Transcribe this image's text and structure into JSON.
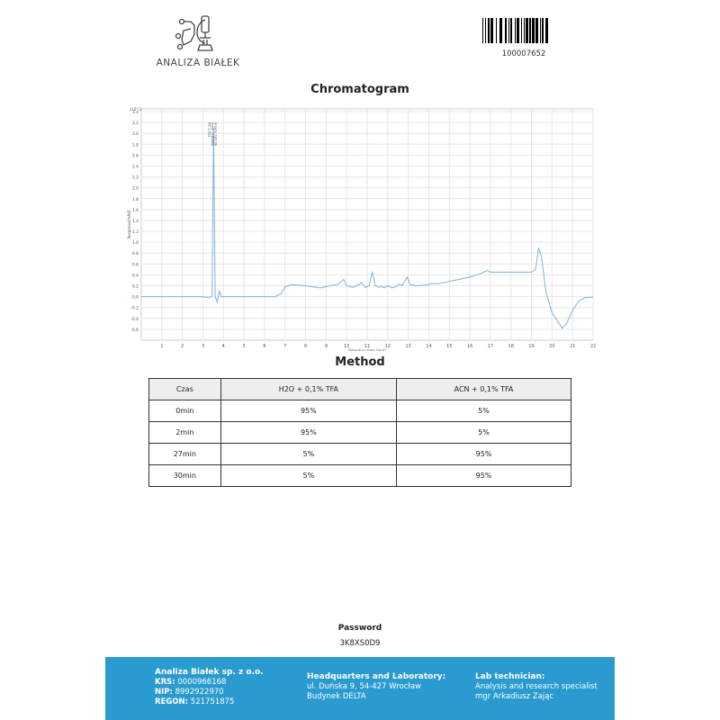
{
  "header": {
    "logo_text": "ANALIZA BIAŁEK",
    "barcode_number": "100007652"
  },
  "chromatogram": {
    "title": "Chromatogram"
  },
  "chart_data": {
    "type": "line",
    "xlabel": "Retention time [min]",
    "ylabel": "Response[mAU]",
    "y_exponent": "x10^2",
    "xlim": [
      0,
      22
    ],
    "ylim": [
      -0.8,
      3.5
    ],
    "x_ticks": [
      1,
      2,
      3,
      4,
      5,
      6,
      7,
      8,
      9,
      10,
      11,
      12,
      13,
      14,
      15,
      16,
      17,
      18,
      19,
      20,
      21,
      22
    ],
    "y_ticks": [
      -0.6,
      -0.4,
      -0.2,
      0.0,
      0.2,
      0.4,
      0.6,
      0.8,
      1.0,
      1.2,
      1.4,
      1.6,
      1.8,
      2.0,
      2.2,
      2.4,
      2.6,
      2.8,
      3.0,
      3.2,
      3.4
    ],
    "grid": true,
    "line_color": "#7fb3d9",
    "peak_label": {
      "x": 3.52,
      "lines": [
        "RT: 3.522",
        "Area: 2785862",
        "Area%: 100.00"
      ]
    },
    "x": [
      0,
      3,
      3.3,
      3.45,
      3.52,
      3.6,
      3.7,
      3.8,
      3.9,
      6.5,
      6.8,
      7.0,
      7.3,
      8,
      8.7,
      9.2,
      9.6,
      9.85,
      10.0,
      10.3,
      10.6,
      10.7,
      10.9,
      11.1,
      11.25,
      11.4,
      11.6,
      11.7,
      11.8,
      12.0,
      12.2,
      12.4,
      12.55,
      12.7,
      12.8,
      12.95,
      13.1,
      13.5,
      14.0,
      14.1,
      14.5,
      15,
      16,
      16.5,
      16.85,
      17,
      19,
      19.2,
      19.35,
      19.5,
      19.7,
      20.0,
      20.5,
      20.7,
      21,
      21.3,
      21.6,
      22
    ],
    "y": [
      0,
      0,
      -0.02,
      0.02,
      3.1,
      0.0,
      -0.1,
      0.1,
      0,
      0,
      0.05,
      0.18,
      0.22,
      0.2,
      0.16,
      0.2,
      0.23,
      0.32,
      0.2,
      0.17,
      0.22,
      0.26,
      0.17,
      0.2,
      0.46,
      0.2,
      0.17,
      0.2,
      0.16,
      0.2,
      0.16,
      0.18,
      0.23,
      0.2,
      0.27,
      0.36,
      0.22,
      0.2,
      0.22,
      0.24,
      0.24,
      0.28,
      0.36,
      0.42,
      0.48,
      0.45,
      0.45,
      0.5,
      0.9,
      0.7,
      0.1,
      -0.3,
      -0.58,
      -0.5,
      -0.25,
      -0.08,
      -0.02,
      -0.01
    ]
  },
  "method": {
    "title": "Method",
    "headers": [
      "Czas",
      "H2O + 0,1% TFA",
      "ACN + 0,1% TFA"
    ],
    "rows": [
      [
        "0min",
        "95%",
        "5%"
      ],
      [
        "2min",
        "95%",
        "5%"
      ],
      [
        "27min",
        "5%",
        "95%"
      ],
      [
        "30min",
        "5%",
        "95%"
      ]
    ]
  },
  "password": {
    "label": "Password",
    "value": "3K8XS0D9"
  },
  "footer": {
    "company": "Analiza Białek sp. z o.o.",
    "krs_label": "KRS:",
    "krs": "0000966168",
    "nip_label": "NIP:",
    "nip": "8992922970",
    "regon_label": "REGON:",
    "regon": "521751875",
    "hq_title": "Headquarters and Laboratory:",
    "hq_line1": "ul. Duńska 9, 54-427 Wrocław",
    "hq_line2": "Budynek DELTA",
    "tech_title": "Lab technician:",
    "tech_line1": "Analysis and research specialist",
    "tech_line2": "mgr Arkadiusz Zając"
  }
}
